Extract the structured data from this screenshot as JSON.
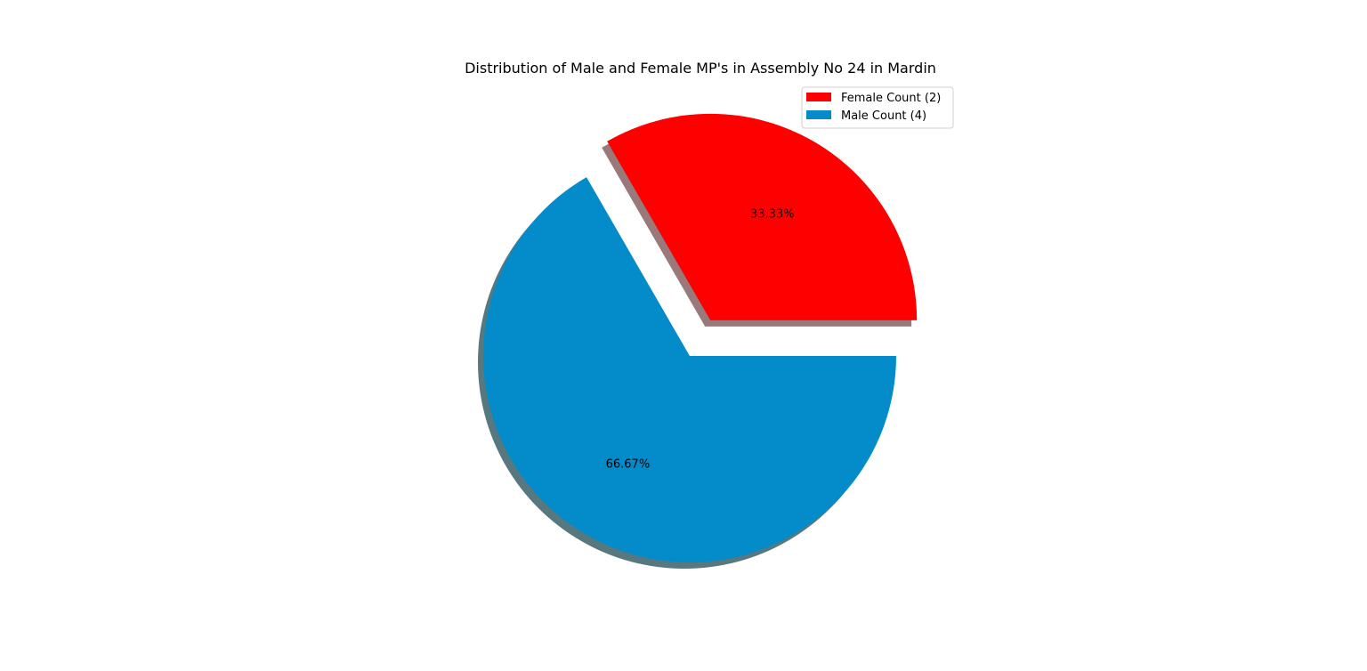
{
  "chart_data": {
    "type": "pie",
    "title": "Distribution of Male and Female MP's in Assembly No 24 in Mardin",
    "slices": [
      {
        "label": "Female Count (2)",
        "value": 2,
        "percent_label": "33.33%",
        "color": "#ff0000",
        "shadow_color": "#997979",
        "exploded": true
      },
      {
        "label": "Male Count (4)",
        "value": 4,
        "percent_label": "66.67%",
        "color": "#048bc9",
        "shadow_color": "#57787f",
        "exploded": false
      }
    ],
    "start_angle_deg": 0,
    "direction": "counterclockwise",
    "shadow": true,
    "legend": {
      "placement": "top-right",
      "entries": [
        "Female Count (2)",
        "Male Count (4)"
      ]
    }
  }
}
